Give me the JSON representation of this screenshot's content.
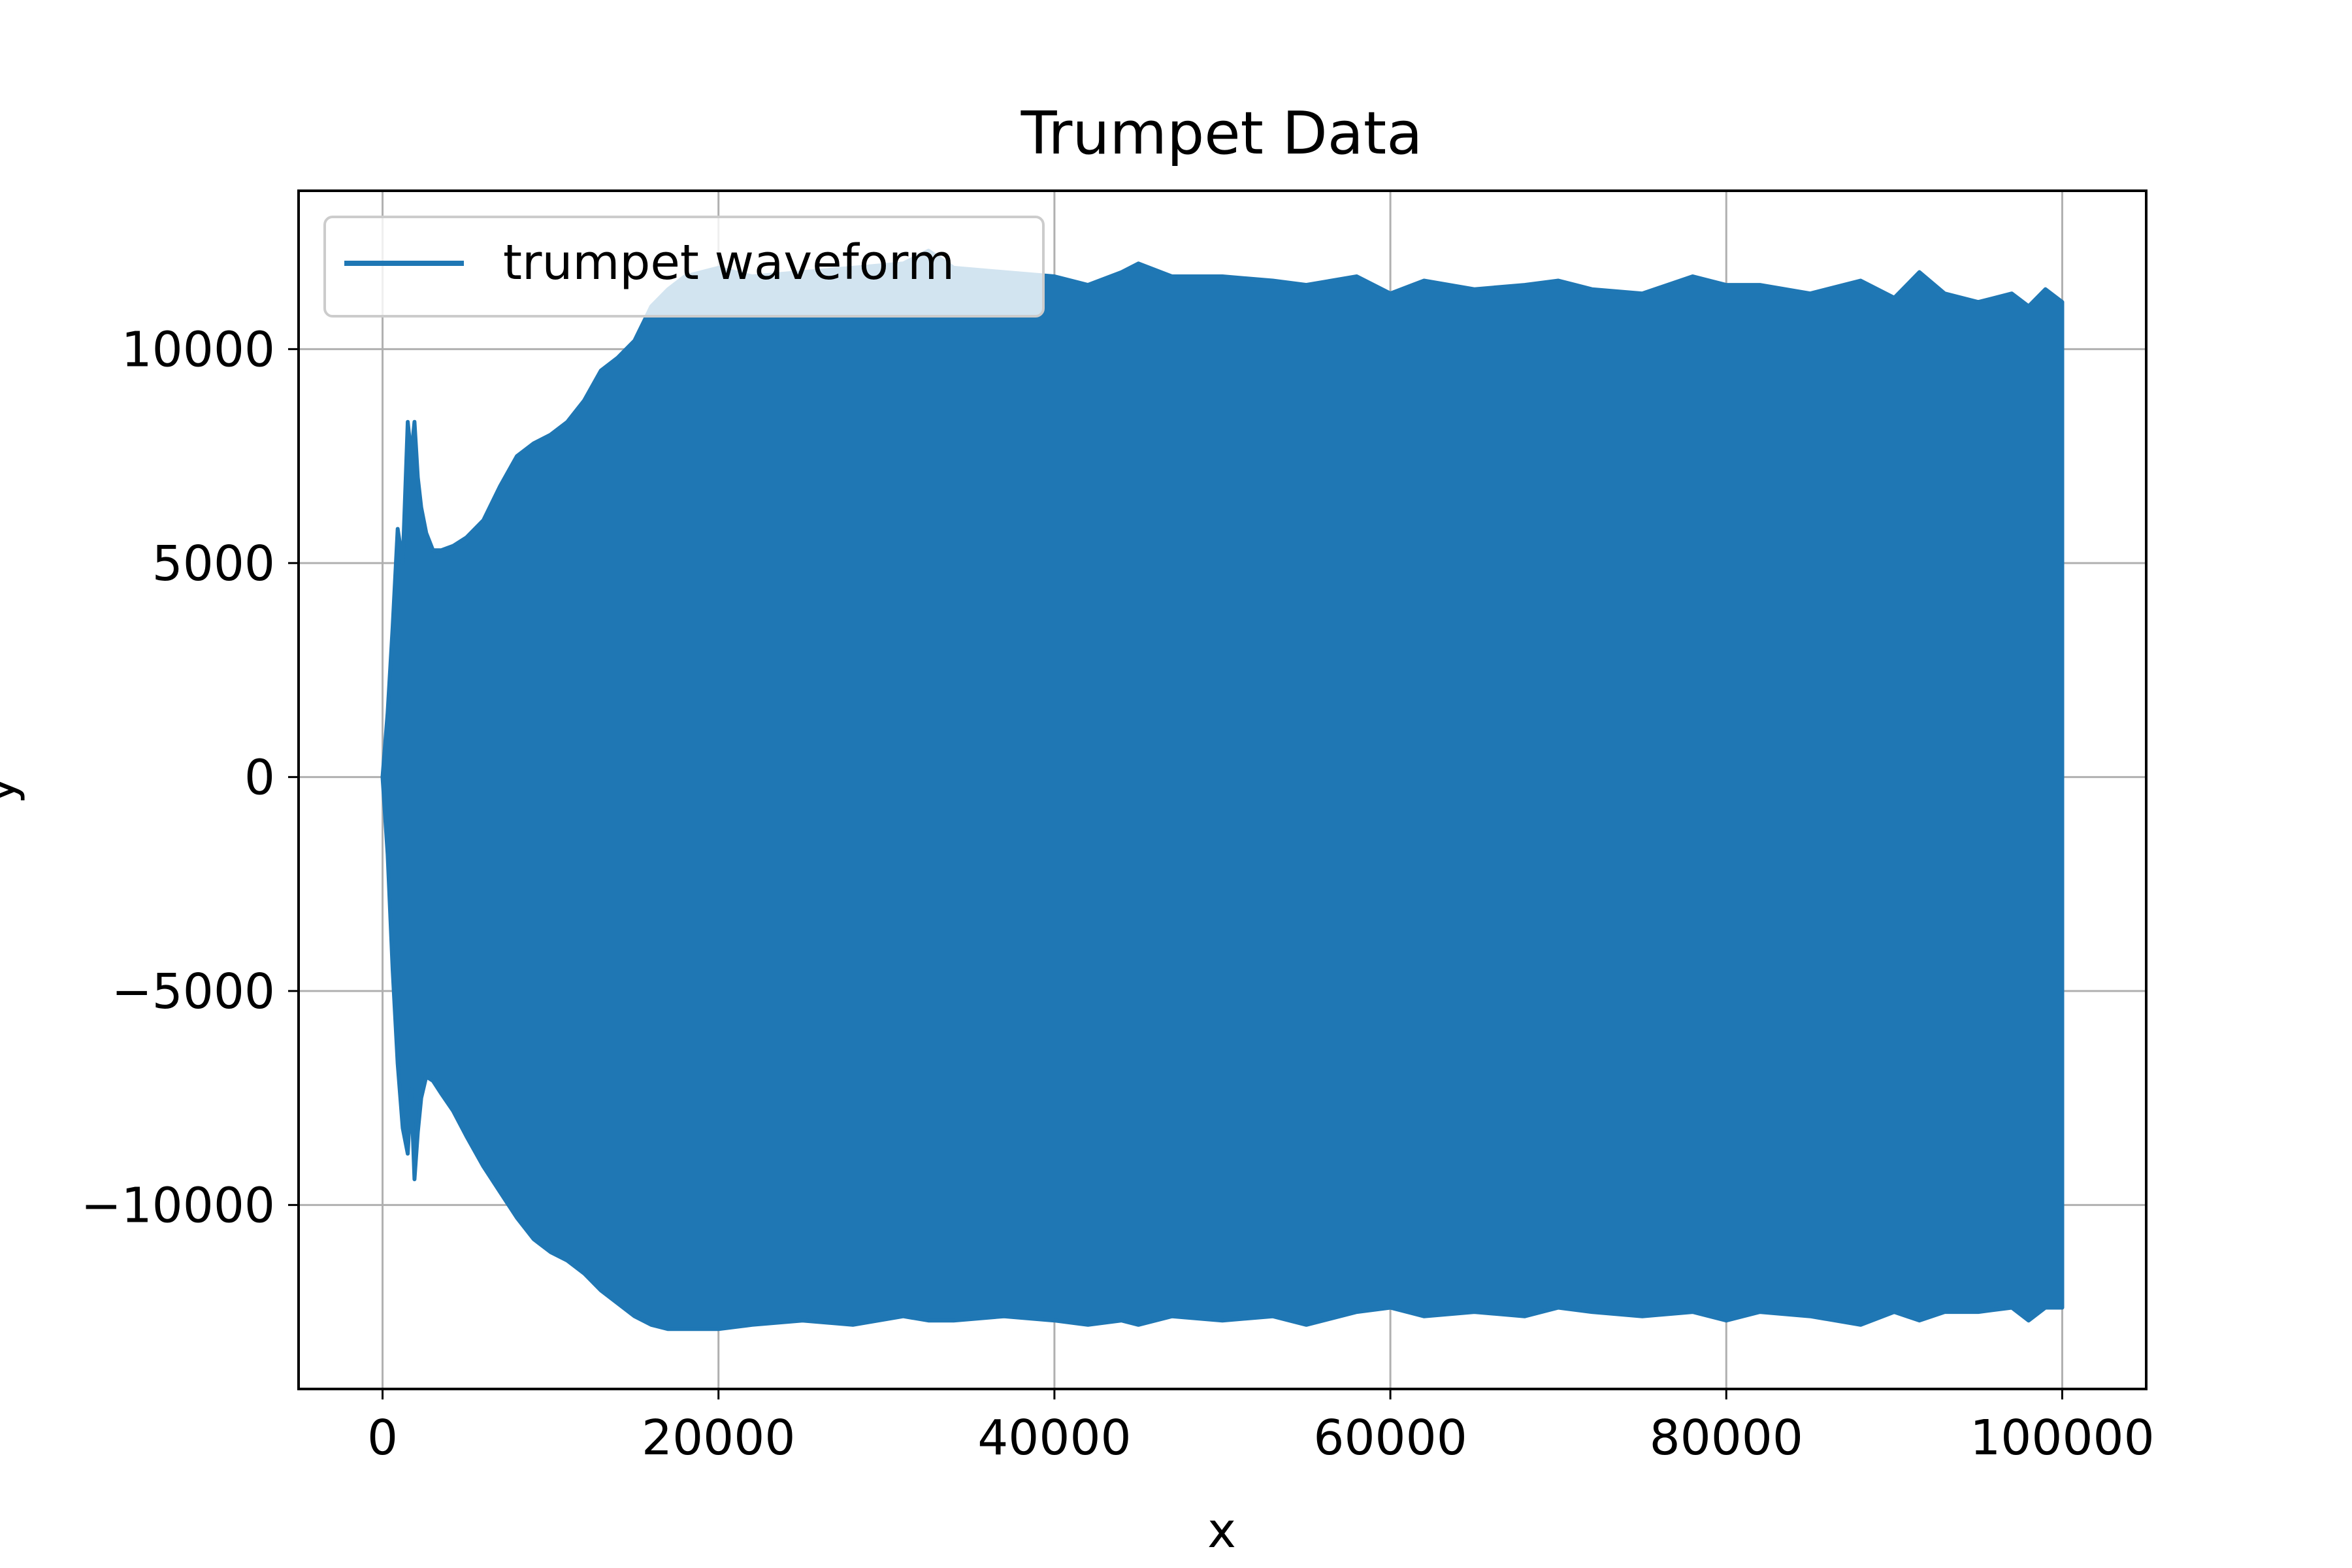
{
  "chart_data": {
    "type": "line",
    "title": "Trumpet Data",
    "xlabel": "x",
    "ylabel": "y",
    "xlim": [
      -5000,
      105000
    ],
    "ylim": [
      -14300,
      13700
    ],
    "x_ticks": [
      0,
      20000,
      40000,
      60000,
      80000,
      100000
    ],
    "x_tick_labels": [
      "0",
      "20000",
      "40000",
      "60000",
      "80000",
      "100000"
    ],
    "y_ticks": [
      10000,
      5000,
      0,
      -5000,
      -10000
    ],
    "y_tick_labels": [
      "10000",
      "5000",
      "0",
      "−5000",
      "−10000"
    ],
    "grid": true,
    "legend_position": "top-left",
    "series": [
      {
        "name": "trumpet waveform",
        "color": "#1f77b4",
        "envelope": {
          "x": [
            0,
            300,
            600,
            900,
            1200,
            1500,
            1700,
            1900,
            2100,
            2300,
            2600,
            3000,
            3500,
            4200,
            5000,
            6000,
            7000,
            8000,
            9000,
            10000,
            11000,
            12000,
            13000,
            14000,
            15000,
            16000,
            17000,
            18000,
            20000,
            22000,
            25000,
            28000,
            31000,
            32500,
            34000,
            37000,
            40000,
            42000,
            44000,
            45000,
            47000,
            50000,
            53000,
            55000,
            58000,
            60000,
            62000,
            65000,
            68000,
            70000,
            72000,
            75000,
            78000,
            80000,
            82000,
            85000,
            88000,
            90000,
            91500,
            93000,
            95000,
            97000,
            98000,
            99000,
            100000
          ],
          "upper": [
            0,
            1500,
            3500,
            5800,
            5000,
            8300,
            7500,
            8300,
            7000,
            6300,
            5700,
            5300,
            5300,
            5400,
            5600,
            6000,
            6800,
            7500,
            7800,
            8000,
            8300,
            8800,
            9500,
            9800,
            10200,
            11000,
            11400,
            11700,
            11900,
            11700,
            11800,
            11900,
            12000,
            12300,
            11900,
            11800,
            11700,
            11500,
            11800,
            12000,
            11700,
            11700,
            11600,
            11500,
            11700,
            11300,
            11600,
            11400,
            11500,
            11600,
            11400,
            11300,
            11700,
            11500,
            11500,
            11300,
            11600,
            11200,
            11800,
            11300,
            11100,
            11300,
            11000,
            11400,
            11100
          ],
          "lower": [
            0,
            -1800,
            -4500,
            -6700,
            -8200,
            -8800,
            -7300,
            -9400,
            -8300,
            -7500,
            -7000,
            -7100,
            -7400,
            -7800,
            -8400,
            -9100,
            -9700,
            -10300,
            -10800,
            -11100,
            -11300,
            -11600,
            -12000,
            -12300,
            -12600,
            -12800,
            -12900,
            -12900,
            -12900,
            -12800,
            -12700,
            -12800,
            -12600,
            -12700,
            -12700,
            -12600,
            -12700,
            -12800,
            -12700,
            -12800,
            -12600,
            -12700,
            -12600,
            -12800,
            -12500,
            -12400,
            -12600,
            -12500,
            -12600,
            -12400,
            -12500,
            -12600,
            -12500,
            -12700,
            -12500,
            -12600,
            -12800,
            -12500,
            -12700,
            -12500,
            -12500,
            -12400,
            -12700,
            -12400,
            -12400
          ]
        }
      }
    ]
  }
}
